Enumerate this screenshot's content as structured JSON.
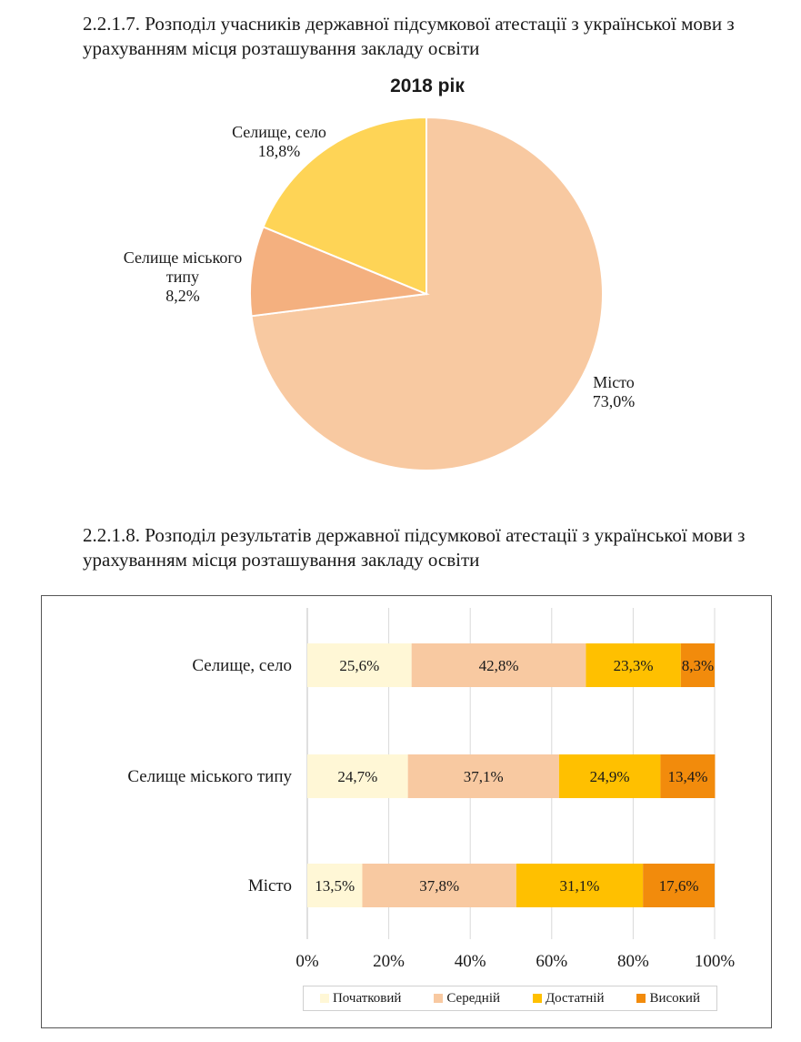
{
  "headings": {
    "h1": "2.2.1.7. Розподіл учасників державної підсумкової атестації з української мови з урахуванням місця розташування закладу освіти",
    "h2": "2.2.1.8. Розподіл результатів державної підсумкової атестації з української мови з урахуванням місця розташування закладу освіти"
  },
  "chart_data": [
    {
      "type": "pie",
      "title": "2018 рік",
      "slices": [
        {
          "label_lines": [
            "Місто",
            "73,0%"
          ],
          "value": 73.0,
          "color": "#f8c9a1"
        },
        {
          "label_lines": [
            "Селище міського",
            "типу",
            "8,2%"
          ],
          "value": 8.2,
          "color": "#f4b07f"
        },
        {
          "label_lines": [
            "Селище, село",
            "18,8%"
          ],
          "value": 18.8,
          "color": "#fed456"
        }
      ]
    },
    {
      "type": "bar",
      "orientation": "horizontal",
      "stacked": true,
      "categories": [
        "Селище, село",
        "Селище міського типу",
        "Місто"
      ],
      "series": [
        {
          "name": "Початковий",
          "color": "#fff7d6",
          "values": [
            25.6,
            24.7,
            13.5
          ],
          "labels": [
            "25,6%",
            "24,7%",
            "13,5%"
          ]
        },
        {
          "name": "Середній",
          "color": "#f8c9a1",
          "values": [
            42.8,
            37.1,
            37.8
          ],
          "labels": [
            "42,8%",
            "37,1%",
            "37,8%"
          ]
        },
        {
          "name": "Достатній",
          "color": "#ffc000",
          "values": [
            23.3,
            24.9,
            31.1
          ],
          "labels": [
            "23,3%",
            "24,9%",
            "31,1%"
          ]
        },
        {
          "name": "Високий",
          "color": "#f28b0c",
          "values": [
            8.3,
            13.4,
            17.6
          ],
          "labels": [
            "8,3%",
            "13,4%",
            "17,6%"
          ]
        }
      ],
      "xlim": [
        0,
        100
      ],
      "xticks": [
        "0%",
        "20%",
        "40%",
        "60%",
        "80%",
        "100%"
      ],
      "grid": true,
      "legend_position": "bottom"
    }
  ]
}
